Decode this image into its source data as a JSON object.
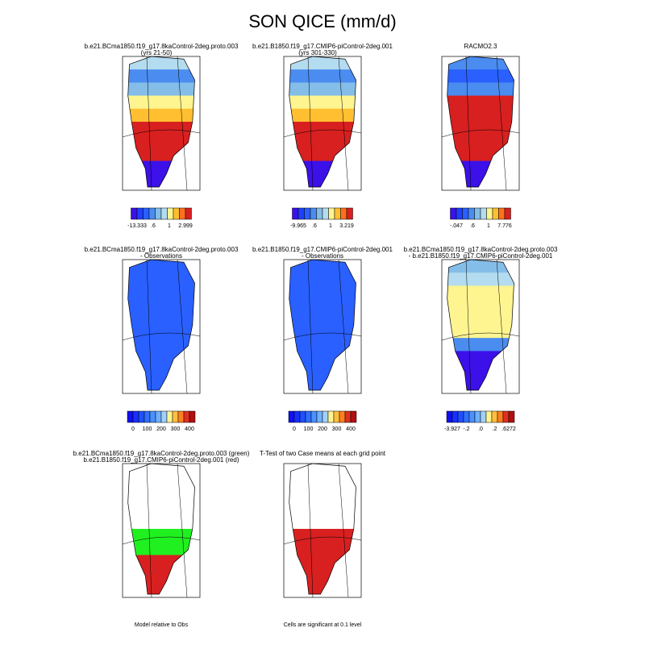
{
  "title": "SON QICE (mm/d)",
  "panels": [
    {
      "title": "b.e21.BCma1850.f19_g17.8kaControl-2deg.proto.003",
      "subtitle": "(yrs 21-50)",
      "colorbar_labels": [
        "-13.333",
        ".6",
        "1",
        "2.999"
      ]
    },
    {
      "title": "b.e21.B1850.f19_g17.CMIP6-piControl-2deg.001",
      "subtitle": "(yrs 301-330)",
      "colorbar_labels": [
        "-9.965",
        ".6",
        "1",
        "3.219"
      ]
    },
    {
      "title": "RACMO2.3",
      "colorbar_labels": [
        "-.047",
        ".6",
        "1",
        "7.776"
      ]
    },
    {
      "title": "b.e21.BCma1850.f19_g17.8kaControl-2deg.proto.003",
      "subtitle": "- Observations",
      "colorbar_labels": [
        "0",
        "100",
        "200",
        "300",
        "400"
      ]
    },
    {
      "title": "b.e21.B1850.f19_g17.CMIP6-piControl-2deg.001",
      "subtitle": "- Observations",
      "colorbar_labels": [
        "0",
        "100",
        "200",
        "300",
        "400"
      ]
    },
    {
      "title": "b.e21.BCma1850.f19_g17.8kaControl-2deg.proto.003",
      "subtitle": "- b.e21.B1850.f19_g17.CMIP6-piControl-2deg.001",
      "colorbar_labels": [
        "-3.927",
        "-.2",
        ".0",
        ".2",
        ".6272"
      ]
    },
    {
      "title": "b.e21.BCma1850.f19_g17.8kaControl-2deg.proto.003 (green)",
      "subtitle": "b.e21.B1850.f19_g17.CMIP6-piControl-2deg.001 (red)",
      "note": "Model relative to Obs"
    },
    {
      "title": "T-Test of two Case means at each grid point",
      "note": "Cells are significant at 0.1 level"
    }
  ]
}
